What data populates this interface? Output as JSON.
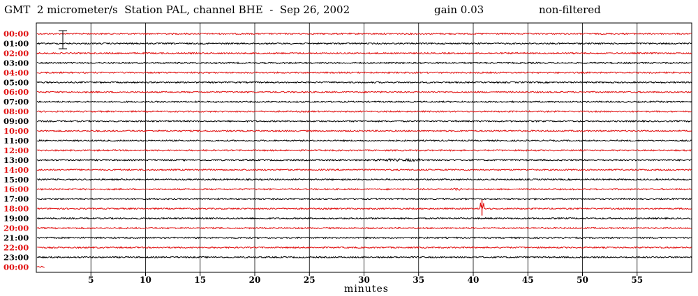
{
  "header": {
    "left": "GMT  2 micrometer/s  Station PAL, channel BHE  -  Sep 26, 2002",
    "gain": "gain 0.03",
    "filter": "non-filtered"
  },
  "chart_data": {
    "type": "line",
    "title": "GMT  2 micrometer/s  Station PAL, channel BHE  -  Sep 26, 2002",
    "xlabel": "minutes",
    "ylabel": "",
    "xlim": [
      0,
      60
    ],
    "x_ticks": [
      5,
      10,
      15,
      20,
      25,
      30,
      35,
      40,
      45,
      50,
      55
    ],
    "grid": true,
    "colors": {
      "red": "#e01010",
      "black": "#000000"
    },
    "rows": [
      {
        "label": "00:00",
        "color": "red"
      },
      {
        "label": "01:00",
        "color": "black"
      },
      {
        "label": "02:00",
        "color": "red"
      },
      {
        "label": "03:00",
        "color": "black"
      },
      {
        "label": "04:00",
        "color": "red"
      },
      {
        "label": "05:00",
        "color": "black"
      },
      {
        "label": "06:00",
        "color": "red"
      },
      {
        "label": "07:00",
        "color": "black"
      },
      {
        "label": "08:00",
        "color": "red"
      },
      {
        "label": "09:00",
        "color": "black"
      },
      {
        "label": "10:00",
        "color": "red"
      },
      {
        "label": "11:00",
        "color": "black"
      },
      {
        "label": "12:00",
        "color": "red"
      },
      {
        "label": "13:00",
        "color": "black"
      },
      {
        "label": "14:00",
        "color": "red"
      },
      {
        "label": "15:00",
        "color": "black"
      },
      {
        "label": "16:00",
        "color": "red"
      },
      {
        "label": "17:00",
        "color": "black"
      },
      {
        "label": "18:00",
        "color": "red"
      },
      {
        "label": "19:00",
        "color": "black"
      },
      {
        "label": "20:00",
        "color": "red"
      },
      {
        "label": "21:00",
        "color": "black"
      },
      {
        "label": "22:00",
        "color": "red"
      },
      {
        "label": "23:00",
        "color": "black"
      },
      {
        "label": "00:00",
        "color": "red",
        "partial_minutes": 0.8
      }
    ],
    "events": [
      {
        "row": 13,
        "start_min": 31,
        "end_min": 35.2,
        "amplitude": "small"
      },
      {
        "row": 16,
        "start_min": 38,
        "end_min": 38.8,
        "amplitude": "medium"
      },
      {
        "row": 18,
        "start_min": 40.6,
        "end_min": 41,
        "amplitude": "large"
      }
    ]
  }
}
